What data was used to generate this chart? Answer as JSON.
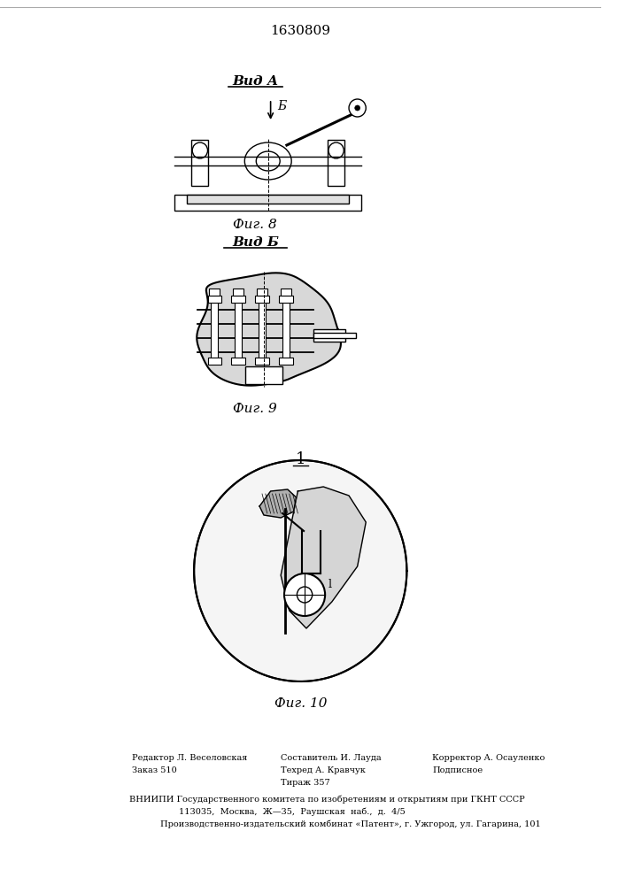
{
  "patent_number": "1630809",
  "background_color": "#ffffff",
  "line_color": "#000000",
  "fig_width": 7.07,
  "fig_height": 10.0,
  "dpi": 100,
  "view_a_label": "Вид А",
  "view_b_label": "Вид Б",
  "fig8_label": "Фиг. 8",
  "fig9_label": "Фиг. 9",
  "fig10_label": "Фиг. 10",
  "label_1": "1",
  "label_b": "Б",
  "footer_left_line1": "Редактор Л. Веселовская",
  "footer_left_line2": "Заказ 510",
  "footer_mid_line1": "Составитель И. Лауда",
  "footer_mid_line2": "Техред А. Кравчук",
  "footer_mid_line3": "Тираж 357",
  "footer_right_line1": "Корректор А. Осауленко",
  "footer_right_line2": "Подписное",
  "footer_vnipi": "ВНИИПИ Государственного комитета по изобретениям и открытиям при ГКНТ СССР",
  "footer_addr1": "113035,  Москва,  Ж—35,  Раушская  наб.,  д.  4/5",
  "footer_addr2": "Производственно-издательский комбинат «Патент», г. Ужгород, ул. Гагарина, 101"
}
